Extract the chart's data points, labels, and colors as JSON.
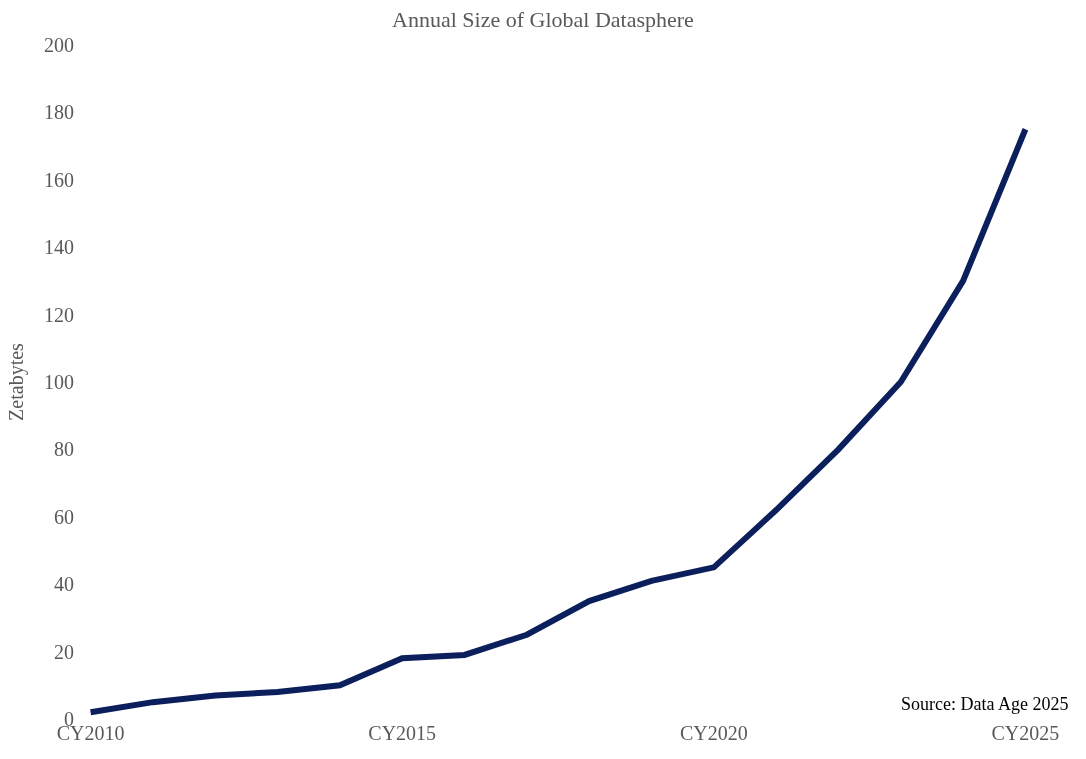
{
  "chart_data": {
    "type": "line",
    "title": "Annual Size of Global Datasphere",
    "ylabel": "Zetabytes",
    "categories": [
      "CY2010",
      null,
      null,
      null,
      null,
      "CY2015",
      null,
      null,
      null,
      null,
      "CY2020",
      null,
      null,
      null,
      null,
      "CY2025"
    ],
    "series": [
      {
        "color": "#0b1f5c",
        "values": [
          2,
          5,
          7,
          8,
          10,
          18,
          19,
          25,
          35,
          41,
          45,
          62,
          80,
          100,
          130,
          175
        ]
      }
    ],
    "ylim": [
      0,
      200
    ],
    "yticks": [
      0,
      20,
      40,
      60,
      80,
      100,
      120,
      140,
      160,
      180,
      200
    ],
    "marker": "none",
    "line_style": "solid",
    "annotations": [
      "Source: Data Age 2025"
    ]
  }
}
